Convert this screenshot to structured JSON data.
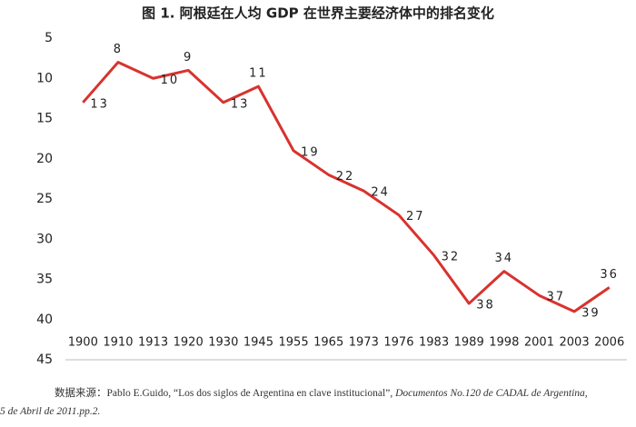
{
  "chart_data": {
    "type": "line",
    "title": "图 1. 阿根廷在人均 GDP 在世界主要经济体中的排名变化",
    "categories": [
      "1900",
      "1910",
      "1913",
      "1920",
      "1930",
      "1945",
      "1955",
      "1965",
      "1973",
      "1976",
      "1983",
      "1989",
      "1998",
      "2001",
      "2003",
      "2006"
    ],
    "values": [
      13,
      8,
      10,
      9,
      13,
      11,
      19,
      22,
      24,
      27,
      32,
      38,
      34,
      37,
      39,
      36
    ],
    "color": "#d9322e",
    "y_inverted": true,
    "ylim": [
      5,
      45
    ],
    "yticks": [
      5,
      10,
      15,
      20,
      25,
      30,
      35,
      40,
      45
    ],
    "grid": false
  },
  "source": {
    "line1": "数据来源：Pablo E.Guido, “Los dos siglos de Argentina en clave institucional”, ",
    "line1_italic": "Documentos No.120 de CADAL de Argentina,",
    "line2_italic": "5 de Abril de 2011.pp.2."
  }
}
